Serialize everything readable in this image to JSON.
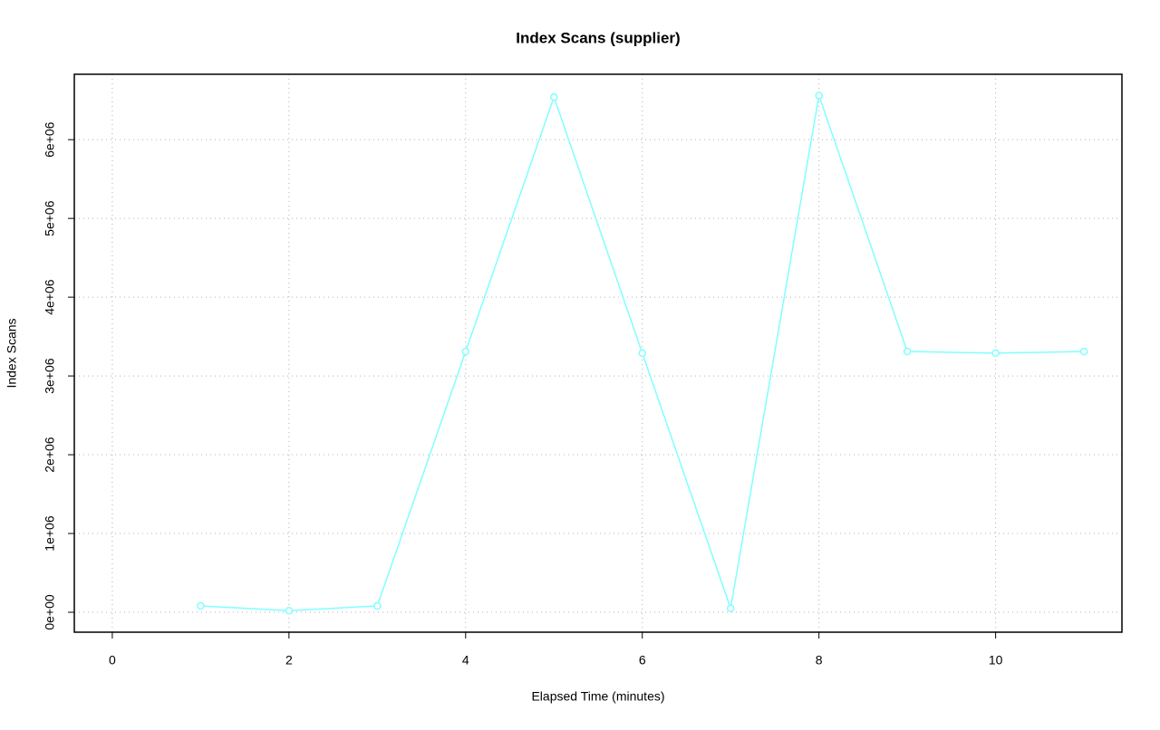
{
  "chart_data": {
    "type": "line",
    "title": "Index Scans (supplier)",
    "x_label": "Elapsed Time (minutes)",
    "y_label": "Index Scans",
    "x": [
      1,
      2,
      3,
      4,
      5,
      6,
      7,
      8,
      9,
      10,
      11
    ],
    "series": [
      {
        "color": "#80ffff",
        "values": [
          80000,
          20000,
          80000,
          3310000,
          6540000,
          3290000,
          50000,
          6560000,
          3310000,
          3290000,
          3310000
        ]
      }
    ],
    "xlim": [
      -0.43,
      11.43
    ],
    "ylim": [
      -253000,
      6830000
    ],
    "xticks": [
      0,
      2,
      4,
      6,
      8,
      10
    ],
    "yticks": [
      {
        "value": 0,
        "label": "0e+00"
      },
      {
        "value": 1000000,
        "label": "1e+06"
      },
      {
        "value": 2000000,
        "label": "2e+06"
      },
      {
        "value": 3000000,
        "label": "3e+06"
      },
      {
        "value": 4000000,
        "label": "4e+06"
      },
      {
        "value": 5000000,
        "label": "5e+06"
      },
      {
        "value": 6000000,
        "label": "6e+06"
      }
    ],
    "grid": true
  }
}
